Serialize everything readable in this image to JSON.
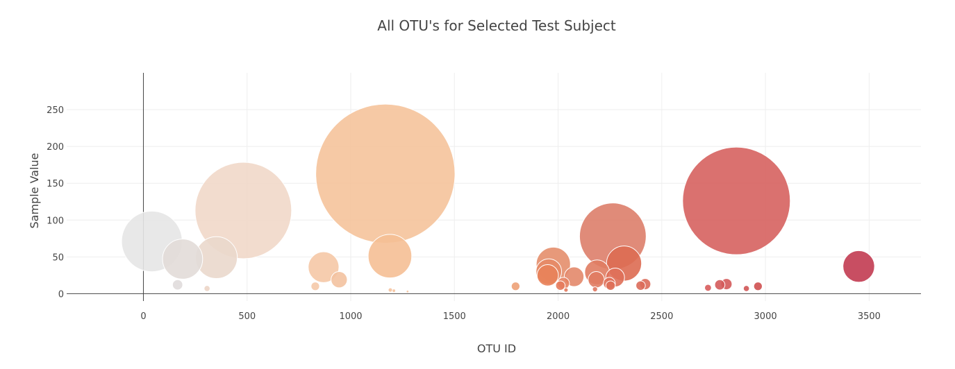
{
  "chart_data": {
    "type": "scatter",
    "title": "All OTU's for Selected Test Subject",
    "xlabel": "OTU ID",
    "ylabel": "Sample Value",
    "xlim": [
      -370,
      3750
    ],
    "ylim": [
      -10,
      300
    ],
    "xticks": [
      0,
      500,
      1000,
      1500,
      2000,
      2500,
      3000,
      3500
    ],
    "yticks": [
      0,
      50,
      100,
      150,
      200,
      250
    ],
    "grid": true,
    "colorscale": "Earth",
    "points": [
      {
        "x": 41,
        "y": 71,
        "color": "#e6e6e6",
        "opacity": 0.9
      },
      {
        "x": 189,
        "y": 47,
        "color": "#e2dcd8",
        "opacity": 0.9
      },
      {
        "x": 352,
        "y": 49,
        "color": "#ead8cc",
        "opacity": 0.9
      },
      {
        "x": 482,
        "y": 113,
        "color": "#f0d6c5",
        "opacity": 0.85
      },
      {
        "x": 165,
        "y": 12,
        "color": "#e0dcdc",
        "opacity": 0.9
      },
      {
        "x": 307,
        "y": 7,
        "color": "#ecd5c6",
        "opacity": 0.9
      },
      {
        "x": 869,
        "y": 36,
        "color": "#f5c8a6",
        "opacity": 0.9
      },
      {
        "x": 944,
        "y": 19,
        "color": "#f3c2a0",
        "opacity": 0.9
      },
      {
        "x": 829,
        "y": 10,
        "color": "#f5c9a9",
        "opacity": 0.9
      },
      {
        "x": 1167,
        "y": 163,
        "color": "#f5bf95",
        "opacity": 0.85
      },
      {
        "x": 1189,
        "y": 51,
        "color": "#f5bf95",
        "opacity": 0.9
      },
      {
        "x": 1191,
        "y": 5,
        "color": "#f5c39e",
        "opacity": 0.9
      },
      {
        "x": 1208,
        "y": 4,
        "color": "#f5c39e",
        "opacity": 0.9
      },
      {
        "x": 1274,
        "y": 3,
        "color": "#f5c39e",
        "opacity": 0.9
      },
      {
        "x": 1795,
        "y": 10,
        "color": "#eda177",
        "opacity": 0.9
      },
      {
        "x": 1977,
        "y": 40,
        "color": "#e48e6c",
        "opacity": 0.9
      },
      {
        "x": 1955,
        "y": 30,
        "color": "#e58a66",
        "opacity": 0.9
      },
      {
        "x": 1950,
        "y": 25,
        "color": "#e8825a",
        "opacity": 0.9
      },
      {
        "x": 2011,
        "y": 11,
        "color": "#e57b5d",
        "opacity": 0.9
      },
      {
        "x": 2026,
        "y": 14,
        "color": "#e58262",
        "opacity": 0.9
      },
      {
        "x": 2038,
        "y": 5,
        "color": "#e27a5d",
        "opacity": 0.9
      },
      {
        "x": 2077,
        "y": 23,
        "color": "#e3886a",
        "opacity": 0.9
      },
      {
        "x": 2264,
        "y": 78,
        "color": "#dd7e6a",
        "opacity": 0.9
      },
      {
        "x": 2188,
        "y": 29,
        "color": "#e07c62",
        "opacity": 0.9
      },
      {
        "x": 2184,
        "y": 19,
        "color": "#e07c62",
        "opacity": 0.9
      },
      {
        "x": 2178,
        "y": 6,
        "color": "#df7761",
        "opacity": 0.9
      },
      {
        "x": 2247,
        "y": 14,
        "color": "#df7059",
        "opacity": 0.9
      },
      {
        "x": 2253,
        "y": 11,
        "color": "#df7059",
        "opacity": 0.9
      },
      {
        "x": 2275,
        "y": 22,
        "color": "#df7059",
        "opacity": 0.9
      },
      {
        "x": 2318,
        "y": 41,
        "color": "#dd6b52",
        "opacity": 0.9
      },
      {
        "x": 2398,
        "y": 11,
        "color": "#dc6b5a",
        "opacity": 0.9
      },
      {
        "x": 2420,
        "y": 13,
        "color": "#dc6b5a",
        "opacity": 0.9
      },
      {
        "x": 2723,
        "y": 8,
        "color": "#d85c5c",
        "opacity": 0.9
      },
      {
        "x": 2780,
        "y": 12,
        "color": "#d45a5a",
        "opacity": 0.9
      },
      {
        "x": 2812,
        "y": 13,
        "color": "#d45a5a",
        "opacity": 0.9
      },
      {
        "x": 2860,
        "y": 126,
        "color": "#d6625f",
        "opacity": 0.9
      },
      {
        "x": 2908,
        "y": 7,
        "color": "#d05555",
        "opacity": 0.9
      },
      {
        "x": 2964,
        "y": 10,
        "color": "#cf5050",
        "opacity": 0.9
      },
      {
        "x": 3450,
        "y": 37,
        "color": "#c5445a",
        "opacity": 0.95
      }
    ]
  }
}
